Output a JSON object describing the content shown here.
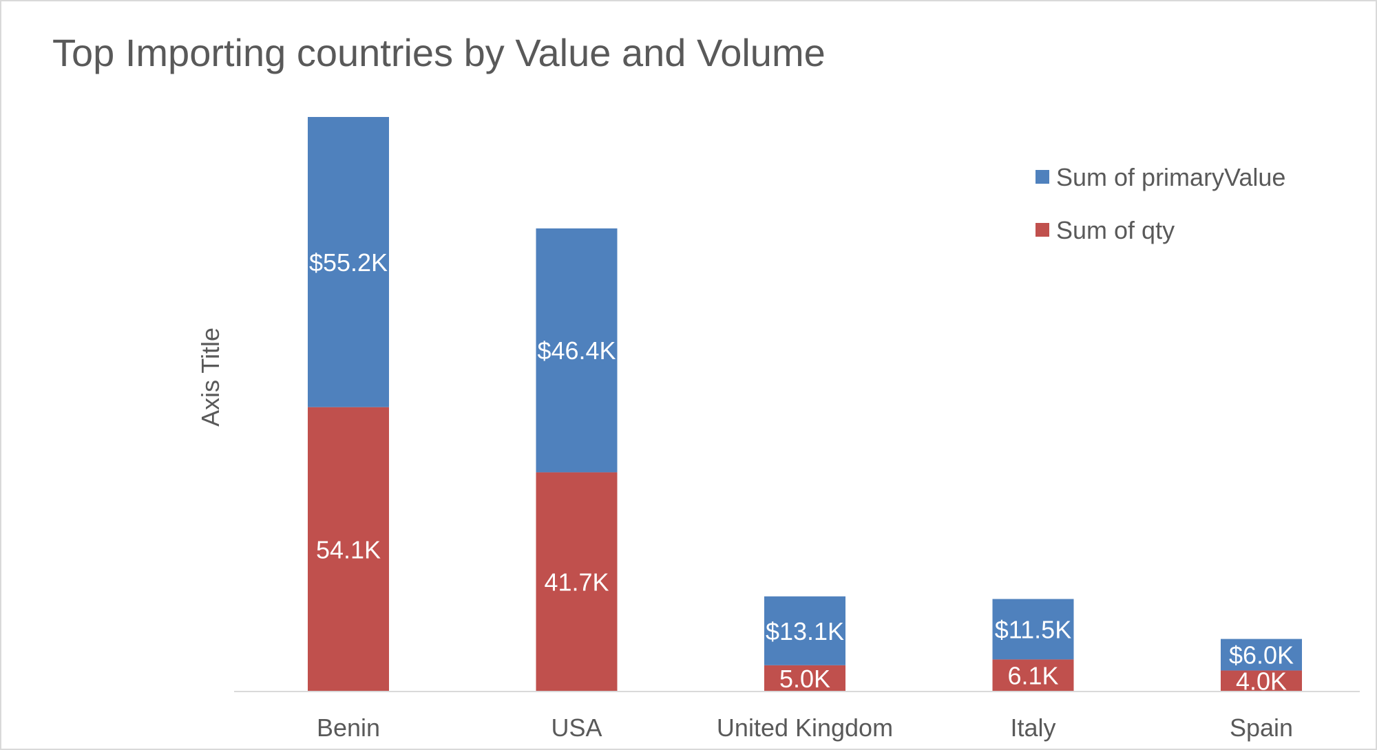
{
  "chart_data": {
    "type": "bar",
    "stacked": true,
    "title": "Top Importing countries by Value and Volume",
    "ylabel": "Axis Title",
    "xlabel": "",
    "categories": [
      "Benin",
      "USA",
      "United Kingdom",
      "Italy",
      "Spain"
    ],
    "series": [
      {
        "name": "Sum of qty",
        "color": "#C0504D",
        "values": [
          54100,
          41700,
          5000,
          6100,
          4000
        ],
        "labels": [
          "54.1K",
          "41.7K",
          "5.0K",
          "6.1K",
          "4.0K"
        ]
      },
      {
        "name": "Sum of primaryValue",
        "color": "#4F81BD",
        "values": [
          55200,
          46400,
          13100,
          11500,
          6000
        ],
        "labels": [
          "$55.2K",
          "$46.4K",
          "$13.1K",
          "$11.5K",
          "$6.0K"
        ]
      }
    ],
    "legend": {
      "position": "top-right",
      "order": [
        "Sum of primaryValue",
        "Sum of qty"
      ]
    },
    "ylim": [
      0,
      110000
    ],
    "grid": false,
    "y_axis_visible": false
  }
}
